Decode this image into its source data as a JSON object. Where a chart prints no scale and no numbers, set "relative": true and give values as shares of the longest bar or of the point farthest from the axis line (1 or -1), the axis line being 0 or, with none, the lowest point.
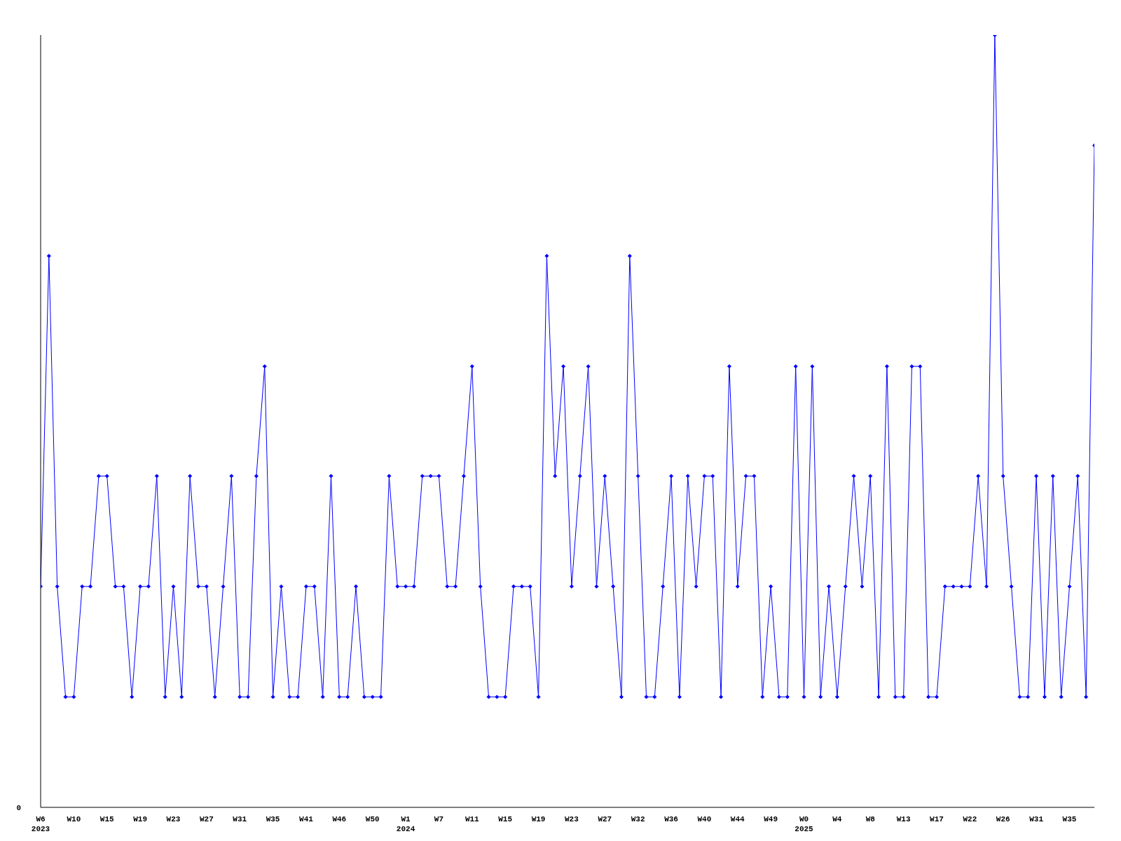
{
  "chart_data": {
    "type": "line",
    "relative": true,
    "annotations": [
      "0"
    ],
    "grid": false,
    "marker": "diamond",
    "line_style": "solid",
    "categories": [
      "W6\n2023",
      null,
      null,
      null,
      "W10",
      null,
      null,
      null,
      "W15",
      null,
      null,
      null,
      "W19",
      null,
      null,
      null,
      "W23",
      null,
      null,
      null,
      "W27",
      null,
      null,
      null,
      "W31",
      null,
      null,
      null,
      "W35",
      null,
      null,
      null,
      "W41",
      null,
      null,
      null,
      "W46",
      null,
      null,
      null,
      "W50",
      null,
      null,
      null,
      "W1\n2024",
      null,
      null,
      null,
      "W7",
      null,
      null,
      null,
      "W11",
      null,
      null,
      null,
      "W15",
      null,
      null,
      null,
      "W19",
      null,
      null,
      null,
      "W23",
      null,
      null,
      null,
      "W27",
      null,
      null,
      null,
      "W32",
      null,
      null,
      null,
      "W36",
      null,
      null,
      null,
      "W40",
      null,
      null,
      null,
      "W44",
      null,
      null,
      null,
      "W49",
      null,
      null,
      null,
      "W0\n2025",
      null,
      null,
      null,
      "W4",
      null,
      null,
      null,
      "W8",
      null,
      null,
      null,
      "W13",
      null,
      null,
      null,
      "W17",
      null,
      null,
      null,
      "W22",
      null,
      null,
      null,
      "W26",
      null,
      null,
      null,
      "W31",
      null,
      null,
      null,
      "W35",
      null,
      null,
      null
    ],
    "series": [
      {
        "color": "#0000ff",
        "values": [
          0.286,
          0.714,
          0.286,
          0.143,
          0.143,
          0.286,
          0.286,
          0.429,
          0.429,
          0.286,
          0.286,
          0.143,
          0.286,
          0.286,
          0.429,
          0.143,
          0.286,
          0.143,
          0.429,
          0.286,
          0.286,
          0.143,
          0.286,
          0.429,
          0.143,
          0.143,
          0.429,
          0.571,
          0.143,
          0.286,
          0.143,
          0.143,
          0.286,
          0.286,
          0.143,
          0.429,
          0.143,
          0.143,
          0.286,
          0.143,
          0.143,
          0.143,
          0.429,
          0.286,
          0.286,
          0.286,
          0.429,
          0.429,
          0.429,
          0.286,
          0.286,
          0.429,
          0.571,
          0.286,
          0.143,
          0.143,
          0.143,
          0.286,
          0.286,
          0.286,
          0.143,
          0.714,
          0.429,
          0.571,
          0.286,
          0.429,
          0.571,
          0.286,
          0.429,
          0.286,
          0.143,
          0.714,
          0.429,
          0.143,
          0.143,
          0.286,
          0.429,
          0.143,
          0.429,
          0.286,
          0.429,
          0.429,
          0.143,
          0.571,
          0.286,
          0.429,
          0.429,
          0.143,
          0.286,
          0.143,
          0.143,
          0.571,
          0.143,
          0.571,
          0.143,
          0.286,
          0.143,
          0.286,
          0.429,
          0.286,
          0.429,
          0.143,
          0.571,
          0.143,
          0.143,
          0.571,
          0.571,
          0.143,
          0.143,
          0.286,
          0.286,
          0.286,
          0.286,
          0.429,
          0.286,
          1,
          0.429,
          0.286,
          0.143,
          0.143,
          0.429,
          0.143,
          0.429,
          0.143,
          0.286,
          0.429,
          0.143,
          0.857
        ]
      }
    ]
  }
}
